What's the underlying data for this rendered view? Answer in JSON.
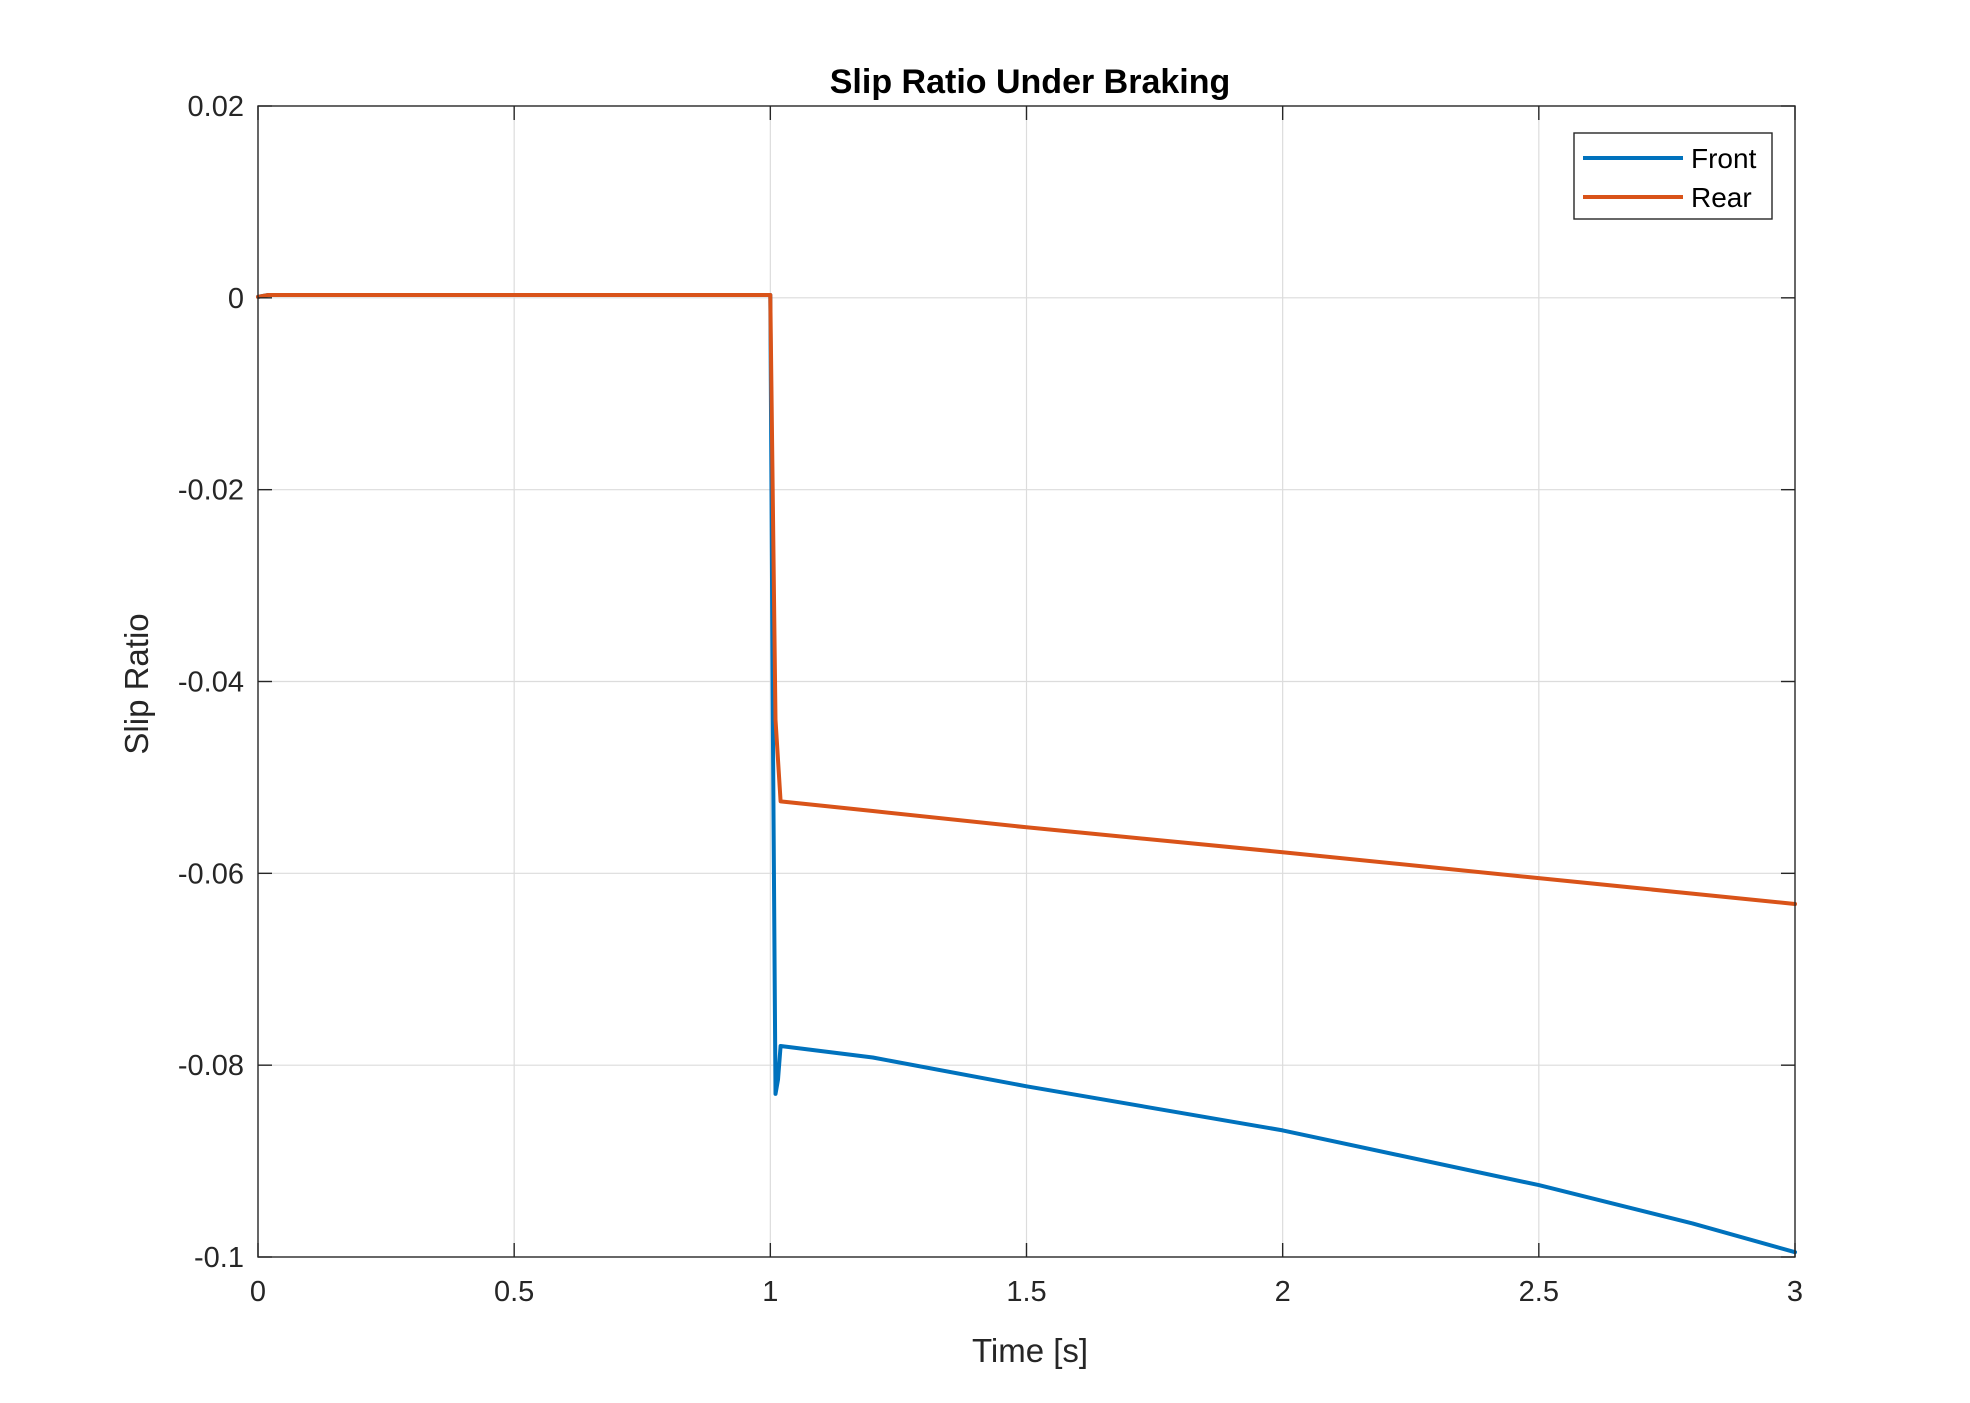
{
  "chart_data": {
    "type": "line",
    "title": "Slip Ratio Under Braking",
    "xlabel": "Time [s]",
    "ylabel": "Slip Ratio",
    "xlim": [
      0,
      3
    ],
    "ylim": [
      -0.1,
      0.02
    ],
    "xticks": [
      0,
      0.5,
      1,
      1.5,
      2,
      2.5,
      3
    ],
    "xtick_labels": [
      "0",
      "0.5",
      "1",
      "1.5",
      "2",
      "2.5",
      "3"
    ],
    "yticks": [
      0.02,
      0,
      -0.02,
      -0.04,
      -0.06,
      -0.08,
      -0.1
    ],
    "ytick_labels": [
      "0.02",
      "0",
      "-0.02",
      "-0.04",
      "-0.06",
      "-0.08",
      "-0.1"
    ],
    "grid": true,
    "legend_position": "top-right",
    "series": [
      {
        "name": "Front",
        "color": "#0072BD",
        "x": [
          0,
          0.02,
          0.5,
          1.0,
          1.005,
          1.01,
          1.015,
          1.02,
          1.2,
          1.5,
          2.0,
          2.5,
          2.8,
          3.0
        ],
        "y": [
          0.0001,
          0.0003,
          0.0003,
          0.0003,
          -0.045,
          -0.083,
          -0.0815,
          -0.078,
          -0.0792,
          -0.0822,
          -0.0868,
          -0.0925,
          -0.0965,
          -0.0995
        ]
      },
      {
        "name": "Rear",
        "color": "#D95319",
        "x": [
          0,
          0.02,
          0.5,
          1.0,
          1.01,
          1.02,
          1.2,
          1.5,
          2.0,
          2.5,
          3.0
        ],
        "y": [
          0.0001,
          0.0003,
          0.0003,
          0.0003,
          -0.044,
          -0.0525,
          -0.0535,
          -0.0552,
          -0.0578,
          -0.0605,
          -0.0632
        ]
      }
    ]
  }
}
